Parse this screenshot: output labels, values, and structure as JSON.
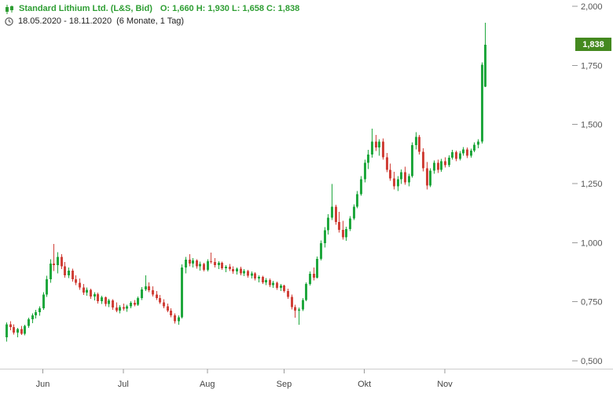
{
  "header": {
    "instrument": "Standard Lithium Ltd. (L&S, Bid)",
    "ohlc": "O: 1,660  H: 1,930  L: 1,658  C: 1,838",
    "period": "18.05.2020 - 18.11.2020",
    "interval": "(6 Monate, 1 Tag)"
  },
  "price_badge": {
    "label": "1,838",
    "value": 1.838,
    "color": "#44891f"
  },
  "colors": {
    "up": "#1fa73d",
    "down": "#d04038",
    "header_green": "#2e9e33",
    "axis_text": "#555555",
    "axis_line": "#cccccc",
    "tick": "#999999"
  },
  "chart_data": {
    "type": "candlestick",
    "title": "Standard Lithium Ltd. (L&S, Bid)",
    "date_range": "18.05.2020 - 18.11.2020",
    "timeframe": "6 Monate, 1 Tag",
    "ohlc_display": {
      "open": "1,660",
      "high": "1,930",
      "low": "1,658",
      "close": "1,838"
    },
    "legend": "none",
    "grid": false,
    "y_axis": {
      "position": "right",
      "range": [
        0.47,
        2.03
      ],
      "ticks": [
        {
          "label": "2,000",
          "value": 2.0
        },
        {
          "label": "1,750",
          "value": 1.75
        },
        {
          "label": "1,500",
          "value": 1.5
        },
        {
          "label": "1,250",
          "value": 1.25
        },
        {
          "label": "1,000",
          "value": 1.0
        },
        {
          "label": "0,750",
          "value": 0.75
        },
        {
          "label": "0,500",
          "value": 0.5
        }
      ]
    },
    "x_axis": {
      "months": [
        {
          "label": "Jun",
          "index": 10
        },
        {
          "label": "Jul",
          "index": 32
        },
        {
          "label": "Aug",
          "index": 55
        },
        {
          "label": "Sep",
          "index": 76
        },
        {
          "label": "Okt",
          "index": 98
        },
        {
          "label": "Nov",
          "index": 120
        }
      ]
    },
    "candles": [
      [
        0.6,
        0.662,
        0.582,
        0.655
      ],
      [
        0.655,
        0.668,
        0.63,
        0.642
      ],
      [
        0.642,
        0.655,
        0.612,
        0.62
      ],
      [
        0.62,
        0.64,
        0.6,
        0.634
      ],
      [
        0.634,
        0.648,
        0.61,
        0.615
      ],
      [
        0.615,
        0.652,
        0.608,
        0.648
      ],
      [
        0.648,
        0.682,
        0.64,
        0.676
      ],
      [
        0.676,
        0.7,
        0.66,
        0.692
      ],
      [
        0.692,
        0.715,
        0.68,
        0.706
      ],
      [
        0.706,
        0.73,
        0.69,
        0.722
      ],
      [
        0.722,
        0.79,
        0.715,
        0.78
      ],
      [
        0.78,
        0.86,
        0.77,
        0.845
      ],
      [
        0.845,
        0.93,
        0.83,
        0.912
      ],
      [
        0.912,
        0.995,
        0.88,
        0.905
      ],
      [
        0.905,
        0.96,
        0.87,
        0.94
      ],
      [
        0.94,
        0.952,
        0.888,
        0.9
      ],
      [
        0.9,
        0.918,
        0.852,
        0.862
      ],
      [
        0.862,
        0.895,
        0.85,
        0.882
      ],
      [
        0.882,
        0.89,
        0.835,
        0.845
      ],
      [
        0.845,
        0.862,
        0.82,
        0.83
      ],
      [
        0.83,
        0.848,
        0.8,
        0.81
      ],
      [
        0.81,
        0.825,
        0.778,
        0.788
      ],
      [
        0.788,
        0.81,
        0.775,
        0.8
      ],
      [
        0.8,
        0.805,
        0.762,
        0.772
      ],
      [
        0.772,
        0.79,
        0.755,
        0.782
      ],
      [
        0.782,
        0.788,
        0.742,
        0.752
      ],
      [
        0.752,
        0.775,
        0.74,
        0.768
      ],
      [
        0.768,
        0.772,
        0.73,
        0.74
      ],
      [
        0.74,
        0.762,
        0.728,
        0.755
      ],
      [
        0.755,
        0.76,
        0.715,
        0.725
      ],
      [
        0.725,
        0.748,
        0.705,
        0.712
      ],
      [
        0.712,
        0.735,
        0.7,
        0.728
      ],
      [
        0.728,
        0.742,
        0.712,
        0.72
      ],
      [
        0.72,
        0.738,
        0.708,
        0.73
      ],
      [
        0.73,
        0.752,
        0.722,
        0.745
      ],
      [
        0.745,
        0.758,
        0.73,
        0.738
      ],
      [
        0.738,
        0.772,
        0.732,
        0.765
      ],
      [
        0.765,
        0.812,
        0.758,
        0.802
      ],
      [
        0.802,
        0.862,
        0.795,
        0.815
      ],
      [
        0.815,
        0.832,
        0.79,
        0.798
      ],
      [
        0.798,
        0.815,
        0.772,
        0.78
      ],
      [
        0.78,
        0.795,
        0.758,
        0.765
      ],
      [
        0.765,
        0.778,
        0.74,
        0.748
      ],
      [
        0.748,
        0.76,
        0.722,
        0.73
      ],
      [
        0.73,
        0.742,
        0.705,
        0.712
      ],
      [
        0.712,
        0.722,
        0.685,
        0.692
      ],
      [
        0.692,
        0.7,
        0.658,
        0.668
      ],
      [
        0.668,
        0.692,
        0.652,
        0.685
      ],
      [
        0.685,
        0.908,
        0.68,
        0.895
      ],
      [
        0.895,
        0.94,
        0.87,
        0.928
      ],
      [
        0.928,
        0.952,
        0.9,
        0.912
      ],
      [
        0.912,
        0.935,
        0.895,
        0.925
      ],
      [
        0.925,
        0.93,
        0.89,
        0.9
      ],
      [
        0.9,
        0.92,
        0.882,
        0.91
      ],
      [
        0.91,
        0.915,
        0.878,
        0.885
      ],
      [
        0.885,
        0.93,
        0.878,
        0.922
      ],
      [
        0.922,
        0.958,
        0.912,
        0.918
      ],
      [
        0.918,
        0.935,
        0.895,
        0.905
      ],
      [
        0.905,
        0.922,
        0.888,
        0.915
      ],
      [
        0.915,
        0.92,
        0.885,
        0.892
      ],
      [
        0.892,
        0.905,
        0.875,
        0.898
      ],
      [
        0.898,
        0.91,
        0.88,
        0.888
      ],
      [
        0.888,
        0.9,
        0.868,
        0.878
      ],
      [
        0.878,
        0.895,
        0.865,
        0.89
      ],
      [
        0.89,
        0.898,
        0.862,
        0.87
      ],
      [
        0.87,
        0.888,
        0.858,
        0.88
      ],
      [
        0.88,
        0.885,
        0.852,
        0.86
      ],
      [
        0.86,
        0.878,
        0.848,
        0.87
      ],
      [
        0.87,
        0.875,
        0.84,
        0.848
      ],
      [
        0.848,
        0.862,
        0.832,
        0.855
      ],
      [
        0.855,
        0.86,
        0.825,
        0.832
      ],
      [
        0.832,
        0.85,
        0.82,
        0.842
      ],
      [
        0.842,
        0.848,
        0.812,
        0.82
      ],
      [
        0.82,
        0.838,
        0.808,
        0.83
      ],
      [
        0.83,
        0.835,
        0.8,
        0.808
      ],
      [
        0.808,
        0.825,
        0.795,
        0.818
      ],
      [
        0.818,
        0.822,
        0.788,
        0.795
      ],
      [
        0.795,
        0.805,
        0.762,
        0.77
      ],
      [
        0.77,
        0.78,
        0.718,
        0.728
      ],
      [
        0.728,
        0.738,
        0.682,
        0.712
      ],
      [
        0.712,
        0.725,
        0.652,
        0.718
      ],
      [
        0.718,
        0.765,
        0.71,
        0.758
      ],
      [
        0.758,
        0.832,
        0.752,
        0.825
      ],
      [
        0.825,
        0.878,
        0.818,
        0.868
      ],
      [
        0.868,
        0.895,
        0.84,
        0.852
      ],
      [
        0.852,
        0.942,
        0.848,
        0.932
      ],
      [
        0.932,
        1.01,
        0.925,
        0.998
      ],
      [
        0.998,
        1.065,
        0.98,
        1.052
      ],
      [
        1.052,
        1.12,
        1.035,
        1.105
      ],
      [
        1.105,
        1.248,
        1.095,
        1.152
      ],
      [
        1.152,
        1.16,
        1.075,
        1.088
      ],
      [
        1.088,
        1.13,
        1.042,
        1.055
      ],
      [
        1.055,
        1.092,
        1.012,
        1.022
      ],
      [
        1.022,
        1.068,
        1.008,
        1.058
      ],
      [
        1.058,
        1.112,
        1.05,
        1.102
      ],
      [
        1.102,
        1.162,
        1.095,
        1.152
      ],
      [
        1.152,
        1.218,
        1.145,
        1.205
      ],
      [
        1.205,
        1.282,
        1.198,
        1.268
      ],
      [
        1.268,
        1.352,
        1.255,
        1.338
      ],
      [
        1.338,
        1.392,
        1.312,
        1.372
      ],
      [
        1.372,
        1.482,
        1.36,
        1.428
      ],
      [
        1.428,
        1.455,
        1.388,
        1.402
      ],
      [
        1.402,
        1.438,
        1.368,
        1.428
      ],
      [
        1.428,
        1.44,
        1.352,
        1.362
      ],
      [
        1.362,
        1.38,
        1.298,
        1.308
      ],
      [
        1.308,
        1.335,
        1.262,
        1.272
      ],
      [
        1.272,
        1.3,
        1.225,
        1.238
      ],
      [
        1.238,
        1.282,
        1.218,
        1.268
      ],
      [
        1.268,
        1.31,
        1.248,
        1.298
      ],
      [
        1.298,
        1.322,
        1.245,
        1.255
      ],
      [
        1.255,
        1.292,
        1.238,
        1.282
      ],
      [
        1.282,
        1.425,
        1.275,
        1.412
      ],
      [
        1.412,
        1.468,
        1.395,
        1.448
      ],
      [
        1.448,
        1.455,
        1.372,
        1.385
      ],
      [
        1.385,
        1.4,
        1.302,
        1.315
      ],
      [
        1.315,
        1.342,
        1.225,
        1.242
      ],
      [
        1.242,
        1.315,
        1.235,
        1.305
      ],
      [
        1.305,
        1.348,
        1.292,
        1.338
      ],
      [
        1.338,
        1.352,
        1.295,
        1.308
      ],
      [
        1.308,
        1.355,
        1.3,
        1.345
      ],
      [
        1.345,
        1.362,
        1.318,
        1.328
      ],
      [
        1.328,
        1.37,
        1.32,
        1.36
      ],
      [
        1.36,
        1.392,
        1.352,
        1.382
      ],
      [
        1.382,
        1.39,
        1.345,
        1.355
      ],
      [
        1.355,
        1.388,
        1.348,
        1.378
      ],
      [
        1.378,
        1.405,
        1.368,
        1.395
      ],
      [
        1.395,
        1.402,
        1.358,
        1.368
      ],
      [
        1.368,
        1.398,
        1.36,
        1.39
      ],
      [
        1.39,
        1.425,
        1.382,
        1.415
      ],
      [
        1.415,
        1.438,
        1.4,
        1.428
      ],
      [
        1.428,
        1.762,
        1.42,
        1.752
      ],
      [
        1.66,
        1.93,
        1.658,
        1.838
      ]
    ]
  }
}
